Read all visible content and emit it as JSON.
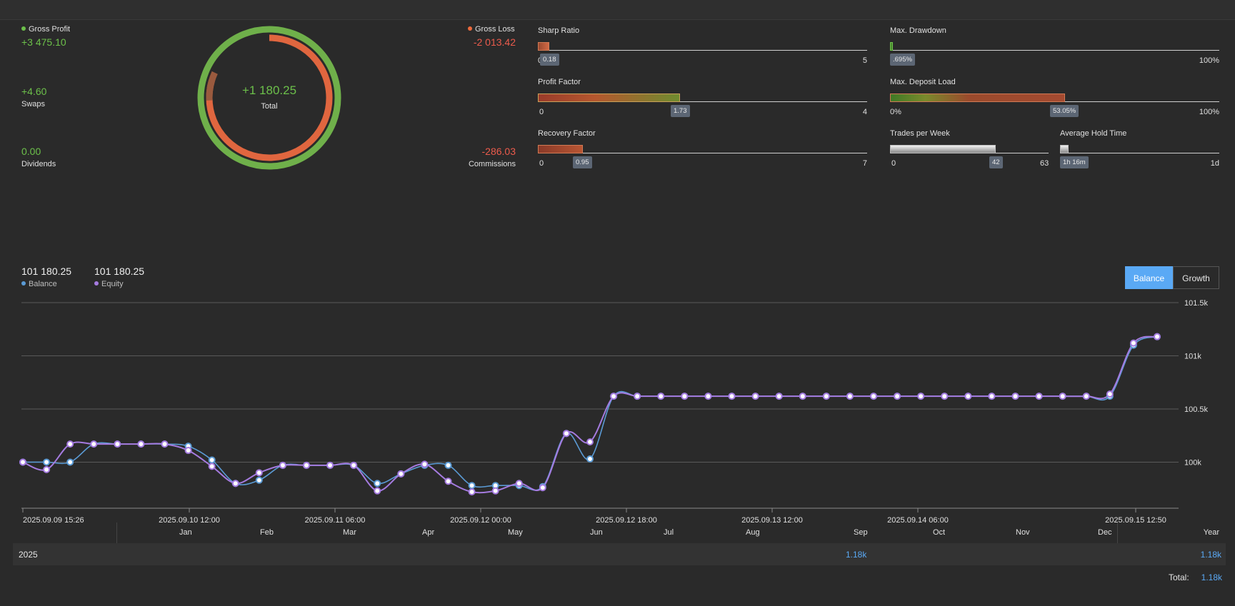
{
  "summary": {
    "gross_profit": {
      "label": "Gross Profit",
      "value": "+3 475.10",
      "color": "#6cc04a"
    },
    "gross_loss": {
      "label": "Gross Loss",
      "value": "-2 013.42",
      "color": "#ec5b4c"
    },
    "swaps": {
      "label": "Swaps",
      "value": "+4.60"
    },
    "dividends": {
      "label": "Dividends",
      "value": "0.00"
    },
    "commissions": {
      "label": "Commissions",
      "value": "-286.03"
    },
    "total": {
      "label": "Total",
      "value": "+1 180.25"
    }
  },
  "metrics": {
    "sharp_ratio": {
      "title": "Sharp Ratio",
      "value": "0.18",
      "min": "0",
      "max": "5",
      "fraction": 0.036
    },
    "profit_factor": {
      "title": "Profit Factor",
      "value": "1.73",
      "min": "0",
      "max": "4",
      "fraction": 0.4325
    },
    "recovery_factor": {
      "title": "Recovery Factor",
      "value": "0.95",
      "min": "0",
      "max": "7",
      "fraction": 0.136
    },
    "max_drawdown": {
      "title": "Max. Drawdown",
      "value": ".695%",
      "min": "0%",
      "max": "100%",
      "fraction": 0.00695
    },
    "max_deposit_load": {
      "title": "Max. Deposit Load",
      "value": "53.05%",
      "min": "0%",
      "max": "100%",
      "fraction": 0.5305
    },
    "trades_per_week": {
      "title": "Trades per Week",
      "value": "42",
      "min": "0",
      "max": "63",
      "fraction": 0.667
    },
    "avg_hold_time": {
      "title": "Average Hold Time",
      "value": "1h 16m",
      "min": "",
      "max": "1d",
      "fraction": 0.053
    }
  },
  "legend": {
    "balance": {
      "value": "101 180.25",
      "name": "Balance",
      "color": "#5b9bd5"
    },
    "equity": {
      "value": "101 180.25",
      "name": "Equity",
      "color": "#a57be0"
    }
  },
  "toggle": {
    "balance_label": "Balance",
    "growth_label": "Growth",
    "active": "Balance",
    "accent": "#5aa9f5"
  },
  "chart_data": {
    "type": "line",
    "x_tick_labels": [
      "2025.09.09 15:26",
      "2025.09.10 12:00",
      "2025.09.11 06:00",
      "2025.09.12 00:00",
      "2025.09.12 18:00",
      "2025.09.13 12:00",
      "2025.09.14 06:00",
      "2025.09.15 12:50"
    ],
    "y_tick_labels": [
      "101.5k",
      "101k",
      "100.5k",
      "100k"
    ],
    "ylim": [
      99580,
      101500
    ],
    "series": [
      {
        "name": "Balance",
        "color": "#5b9bd5",
        "values": [
          100000,
          100000,
          100000,
          100170,
          100170,
          100170,
          100170,
          100150,
          100020,
          99800,
          99830,
          99970,
          99970,
          99970,
          99970,
          99800,
          99890,
          99970,
          99970,
          99780,
          99780,
          99780,
          99770,
          100270,
          100030,
          100620,
          100620,
          100620,
          100620,
          100620,
          100620,
          100620,
          100620,
          100620,
          100620,
          100620,
          100620,
          100620,
          100620,
          100620,
          100620,
          100620,
          100620,
          100620,
          100620,
          100620,
          100620,
          101100,
          101180
        ]
      },
      {
        "name": "Equity",
        "color": "#a57be0",
        "values": [
          100000,
          99930,
          100170,
          100170,
          100170,
          100170,
          100170,
          100110,
          99960,
          99800,
          99900,
          99970,
          99970,
          99970,
          99970,
          99730,
          99890,
          99980,
          99820,
          99720,
          99730,
          99800,
          99760,
          100270,
          100190,
          100620,
          100620,
          100620,
          100620,
          100620,
          100620,
          100620,
          100620,
          100620,
          100620,
          100620,
          100620,
          100620,
          100620,
          100620,
          100620,
          100620,
          100620,
          100620,
          100620,
          100620,
          100640,
          101120,
          101180
        ]
      }
    ]
  },
  "yearly": {
    "months": [
      "Jan",
      "Feb",
      "Mar",
      "Apr",
      "May",
      "Jun",
      "Jul",
      "Aug",
      "Sep",
      "Oct",
      "Nov",
      "Dec"
    ],
    "year_header": "Year",
    "year": "2025",
    "sep_value": "1.18k",
    "year_value": "1.18k",
    "total_label": "Total:",
    "total_value": "1.18k",
    "value_color": "#5aa9f5"
  }
}
